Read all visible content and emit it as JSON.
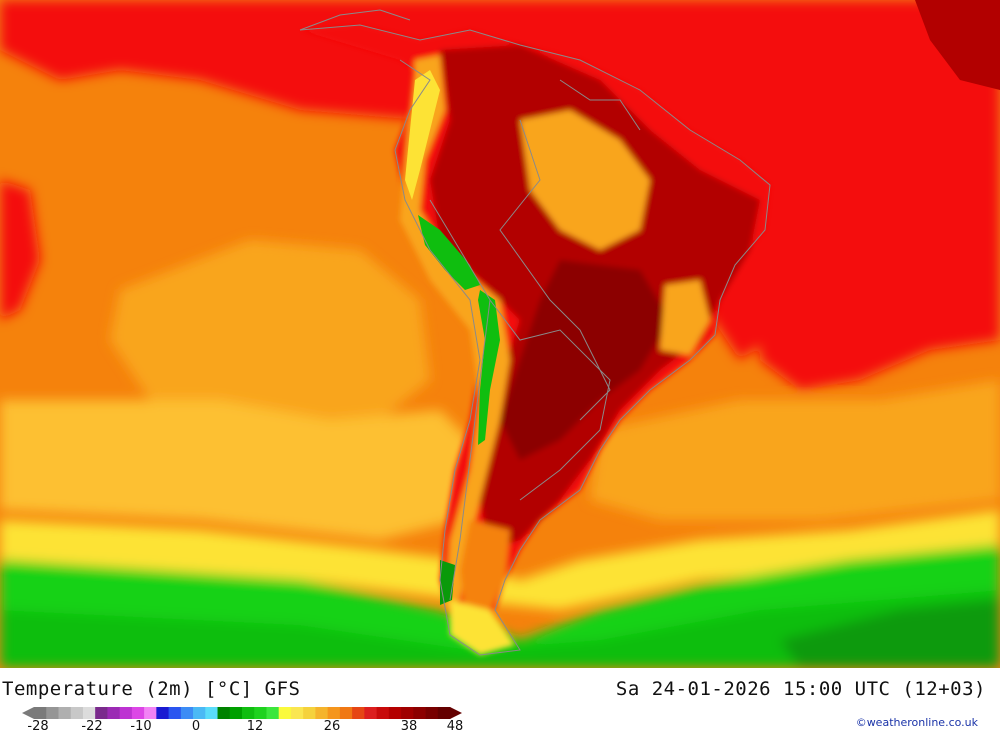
{
  "map": {
    "region": "South America",
    "colors": {
      "sea_orange": "#f5820c",
      "sea_light_orange": "#f9a51c",
      "sea_yellow_orange": "#fdc030",
      "sea_yellow": "#fde335",
      "hot_red": "#f40c0c",
      "very_hot": "#b20000",
      "extreme": "#8c0000",
      "green_light": "#19d219",
      "green": "#0fbe0f",
      "green_dark": "#0a9a0a",
      "border": "#8a8a8a"
    }
  },
  "footer": {
    "title": "Temperature (2m) [°C] GFS",
    "datetime": "Sa 24-01-2026 15:00 UTC (12+03)",
    "credit": "©weatheronline.co.uk"
  },
  "legend": {
    "colors": [
      "#7a7a7a",
      "#959595",
      "#afafaf",
      "#c8c8c8",
      "#dcdcdc",
      "#7a2a8c",
      "#9b2ab4",
      "#bd32d2",
      "#dc46e6",
      "#f282f5",
      "#1a1ad2",
      "#2a55f0",
      "#3c8cf5",
      "#4ab9f5",
      "#5adcfa",
      "#008200",
      "#00a000",
      "#10be10",
      "#1ed21e",
      "#3ce63c",
      "#fafa3c",
      "#fae650",
      "#f5d23c",
      "#f5b42c",
      "#f5961c",
      "#f07814",
      "#e64614",
      "#dc1e1e",
      "#c80a0a",
      "#b40000",
      "#a00000",
      "#8c0000",
      "#780000",
      "#640000"
    ],
    "ticks": [
      "-28",
      "-22",
      "-10",
      "0",
      "12",
      "26",
      "38",
      "48"
    ]
  }
}
